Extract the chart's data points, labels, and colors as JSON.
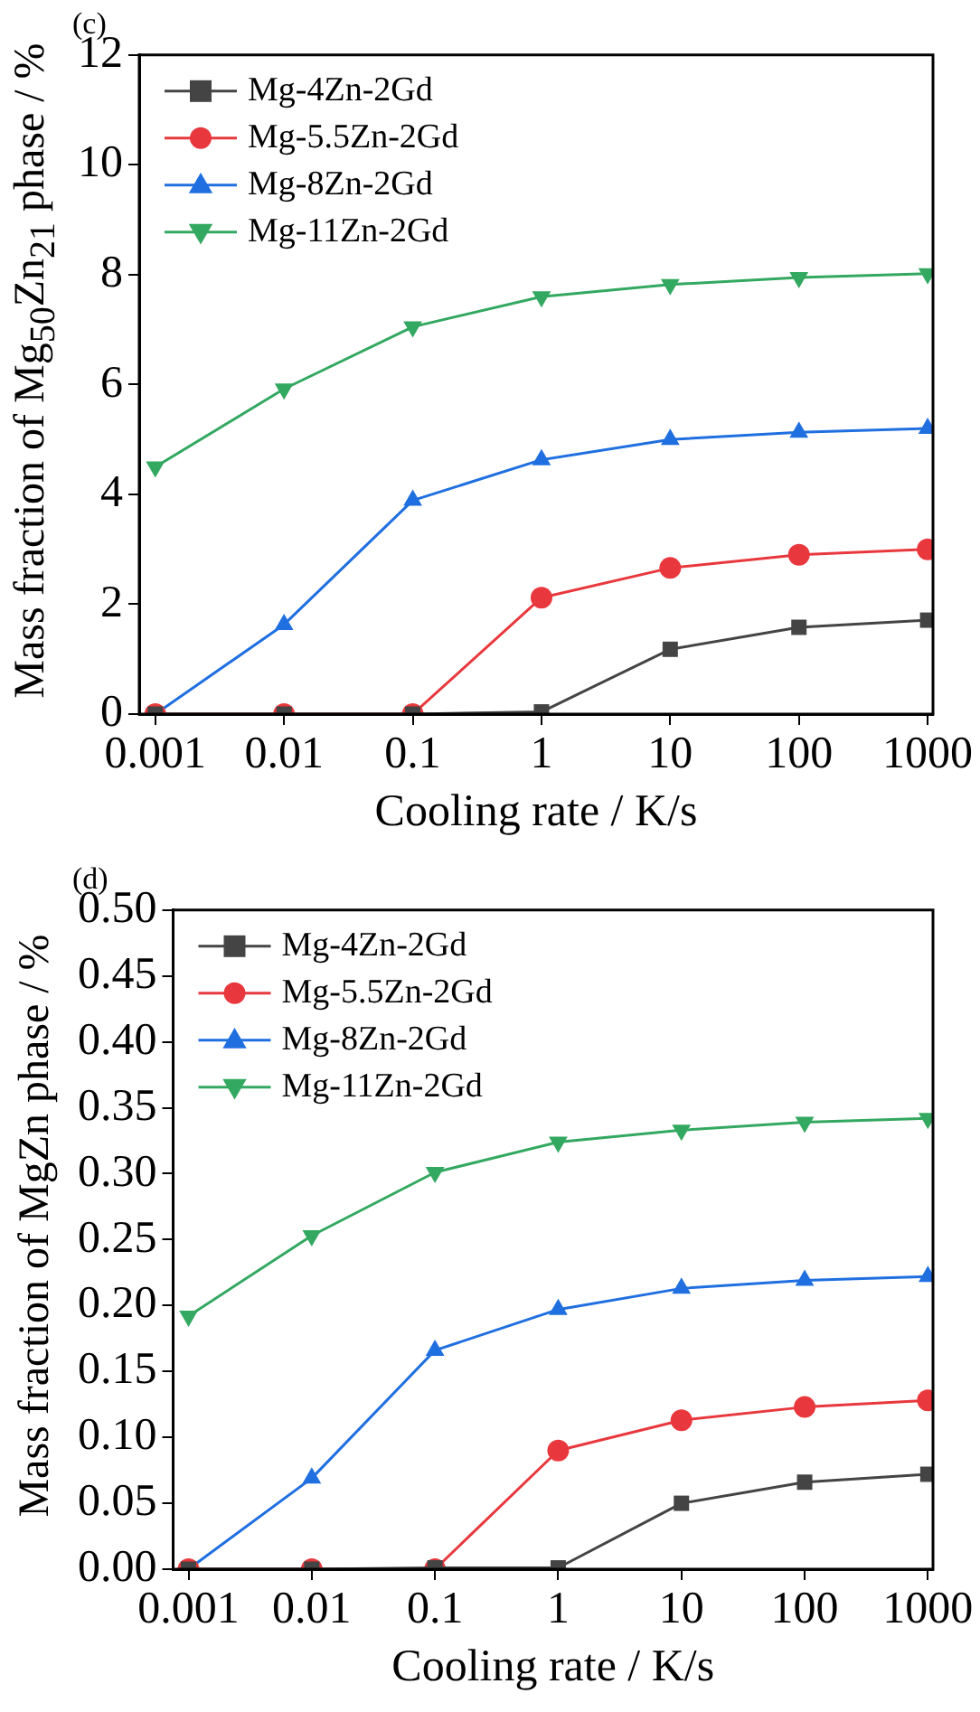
{
  "chart_data": [
    {
      "type": "line",
      "title": "(c)",
      "xlabel": "Cooling rate / K/s",
      "ylabel": "Mass fraction of Mg$_{50}$Zn$_{21}$ phase / %",
      "log": "x",
      "legend": "top left",
      "x": [
        0.001,
        0.01,
        0.1,
        1,
        10,
        100,
        1000
      ],
      "xlim": [
        0.00075,
        1100
      ],
      "xticks": [
        0.001,
        0.01,
        0.1,
        1,
        10,
        100,
        1000
      ],
      "ylim": [
        0,
        12
      ],
      "yticks": [
        0,
        2,
        4,
        6,
        8,
        10,
        12
      ],
      "series": [
        {
          "name": "Mg-4Zn-2Gd",
          "color": "#444444",
          "marker": "square",
          "values": [
            0,
            0,
            0,
            0.04,
            1.18,
            1.58,
            1.71
          ]
        },
        {
          "name": "Mg-5.5Zn-2Gd",
          "color": "#e8383d",
          "marker": "circle",
          "values": [
            0,
            0,
            0,
            2.12,
            2.66,
            2.9,
            3.0
          ]
        },
        {
          "name": "Mg-8Zn-2Gd",
          "color": "#1f6fe0",
          "marker": "triangle",
          "values": [
            0,
            1.63,
            3.89,
            4.63,
            5.0,
            5.13,
            5.2
          ]
        },
        {
          "name": "Mg-11Zn-2Gd",
          "color": "#33a860",
          "marker": "triangle-down",
          "values": [
            4.5,
            5.92,
            7.05,
            7.6,
            7.82,
            7.95,
            8.02
          ]
        }
      ]
    },
    {
      "type": "line",
      "title": "(d)",
      "xlabel": "Cooling rate / K/s",
      "ylabel": "Mass fraction of MgZn phase / %",
      "log": "x",
      "legend": "top left",
      "x": [
        0.001,
        0.01,
        0.1,
        1,
        10,
        100,
        1000
      ],
      "xlim": [
        0.00075,
        1100
      ],
      "xticks": [
        0.001,
        0.01,
        0.1,
        1,
        10,
        100,
        1000
      ],
      "ylim": [
        0,
        0.5
      ],
      "yticks": [
        {
          "value": 0,
          "label": "0.00"
        },
        0.05,
        {
          "value": 0.1,
          "label": "0.10"
        },
        0.15,
        {
          "value": 0.2,
          "label": "0.20"
        },
        0.25,
        {
          "value": 0.3,
          "label": "0.30"
        },
        0.35,
        {
          "value": 0.4,
          "label": "0.40"
        },
        0.45,
        {
          "value": 0.5,
          "label": "0.50"
        }
      ],
      "series": [
        {
          "name": "Mg-4Zn-2Gd",
          "color": "#444444",
          "marker": "square",
          "values": [
            0,
            0,
            0.001,
            0.001,
            0.05,
            0.066,
            0.072
          ]
        },
        {
          "name": "Mg-5.5Zn-2Gd",
          "color": "#e8383d",
          "marker": "circle",
          "values": [
            0,
            0,
            0,
            0.09,
            0.113,
            0.123,
            0.128
          ]
        },
        {
          "name": "Mg-8Zn-2Gd",
          "color": "#1f6fe0",
          "marker": "triangle",
          "values": [
            0,
            0.069,
            0.166,
            0.197,
            0.213,
            0.219,
            0.222
          ]
        },
        {
          "name": "Mg-11Zn-2Gd",
          "color": "#33a860",
          "marker": "triangle-down",
          "values": [
            0.192,
            0.253,
            0.301,
            0.324,
            0.333,
            0.339,
            0.342
          ]
        }
      ]
    }
  ]
}
